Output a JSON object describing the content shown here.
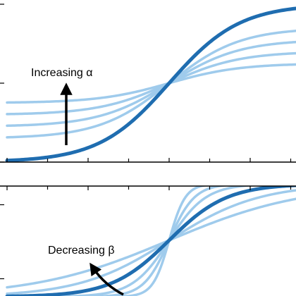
{
  "chart_data": [
    {
      "type": "line",
      "title": "",
      "xlabel": "",
      "ylabel": "",
      "xlim": [
        -4,
        3.2
      ],
      "ylim": [
        0,
        1
      ],
      "grid": false,
      "legend": "none",
      "annotation": "Increasing α",
      "colors": {
        "emphasis": "#1f6db0",
        "family": "#9fcbec",
        "arrow": "#000000"
      },
      "x_ticks": [
        -4,
        -2,
        0,
        2
      ],
      "y_ticks": [
        0,
        0.5,
        1
      ],
      "series": [
        {
          "alpha": 0.25,
          "beta": 1.15,
          "emphasis": false
        },
        {
          "alpha": 0.4,
          "beta": 1.15,
          "emphasis": false
        },
        {
          "alpha": 0.55,
          "beta": 1.15,
          "emphasis": false
        },
        {
          "alpha": 0.7,
          "beta": 1.15,
          "emphasis": false
        },
        {
          "alpha": 1.0,
          "beta": 1.15,
          "emphasis": true
        }
      ]
    },
    {
      "type": "line",
      "title": "",
      "xlabel": "",
      "ylabel": "",
      "xlim": [
        -4,
        3.2
      ],
      "ylim": [
        0,
        1
      ],
      "grid": false,
      "legend": "none",
      "annotation": "Decreasing β",
      "colors": {
        "emphasis": "#1f6db0",
        "family": "#9fcbec",
        "arrow": "#000000"
      },
      "x_ticks": [
        -4,
        -2,
        0,
        2
      ],
      "y_ticks": [
        0,
        0.5,
        1
      ],
      "series": [
        {
          "beta": 5.0,
          "emphasis": false
        },
        {
          "beta": 3.2,
          "emphasis": false
        },
        {
          "beta": 2.2,
          "emphasis": false
        },
        {
          "beta": 0.9,
          "emphasis": false
        },
        {
          "beta": 0.6,
          "emphasis": false
        },
        {
          "beta": 1.4,
          "emphasis": true
        }
      ]
    }
  ]
}
